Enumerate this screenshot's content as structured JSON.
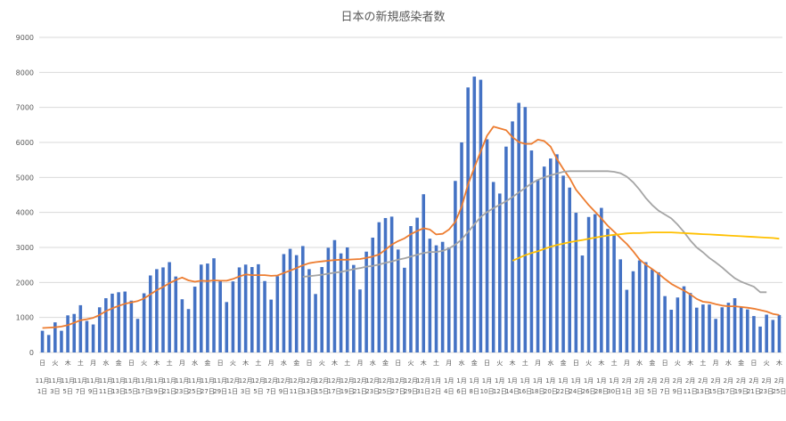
{
  "chart_data": {
    "type": "bar",
    "title": "日本の新規感染者数",
    "ylim": [
      0,
      9000
    ],
    "yticks": [
      0,
      1000,
      2000,
      3000,
      4000,
      5000,
      6000,
      7000,
      8000,
      9000
    ],
    "grid": true,
    "colors": {
      "bars": "#4472C4",
      "line_orange": "#ED7D31",
      "line_gray": "#A5A5A5",
      "line_yellow": "#FFC000",
      "grid": "#D9D9D9"
    },
    "weekday_labels": [
      "日",
      "",
      "火",
      "",
      "木",
      "",
      "土",
      "",
      "月",
      "",
      "水",
      "",
      "金",
      "",
      "日",
      "",
      "火",
      "",
      "木",
      "",
      "土",
      "",
      "月",
      "",
      "水",
      "",
      "金",
      "",
      "日",
      "",
      "火",
      "",
      "木",
      "",
      "土",
      "",
      "月",
      "",
      "水",
      "",
      "金",
      "",
      "日",
      "",
      "火",
      "",
      "木",
      "",
      "土",
      "",
      "月",
      "",
      "水",
      "",
      "金",
      "",
      "日",
      "",
      "火",
      "",
      "木",
      "",
      "土",
      "",
      "月",
      "",
      "水",
      "",
      "金",
      "",
      "日",
      "",
      "火",
      "",
      "木",
      "",
      "土",
      "",
      "月",
      "",
      "水",
      "",
      "金",
      "",
      "日",
      "",
      "火",
      "",
      "木",
      "",
      "土",
      "",
      "月",
      "",
      "水",
      "",
      "金",
      "",
      "日",
      "",
      "火",
      "",
      "木",
      "",
      "土",
      "",
      "月",
      "",
      "水",
      "",
      "金",
      "",
      "日",
      "",
      "火",
      "",
      "木",
      "",
      "土",
      "",
      "月",
      "",
      "水",
      "",
      "金",
      "",
      "日",
      "",
      "火",
      "",
      "木"
    ],
    "month_labels": [
      "11月",
      "",
      "11月",
      "",
      "11月",
      "",
      "11月",
      "",
      "11月",
      "",
      "11月",
      "",
      "11月",
      "",
      "11月",
      "",
      "11月",
      "",
      "11月",
      "",
      "11月",
      "",
      "11月",
      "",
      "11月",
      "",
      "11月",
      "",
      "11月",
      "",
      "12月",
      "",
      "12月",
      "",
      "12月",
      "",
      "12月",
      "",
      "12月",
      "",
      "12月",
      "",
      "12月",
      "",
      "12月",
      "",
      "12月",
      "",
      "12月",
      "",
      "12月",
      "",
      "12月",
      "",
      "12月",
      "",
      "12月",
      "",
      "12月",
      "",
      "12月",
      "",
      "1月",
      "",
      "1月",
      "",
      "1月",
      "",
      "1月",
      "",
      "1月",
      "",
      "1月",
      "",
      "1月",
      "",
      "1月",
      "",
      "1月",
      "",
      "1月",
      "",
      "1月",
      "",
      "1月",
      "",
      "1月",
      "",
      "1月",
      "",
      "1月",
      "",
      "2月",
      "",
      "2月",
      "",
      "2月",
      "",
      "2月",
      "",
      "2月",
      "",
      "2月",
      "",
      "2月",
      "",
      "2月",
      "",
      "2月",
      "",
      "2月",
      "",
      "2月",
      "",
      "2月",
      "",
      "2月"
    ],
    "day_labels": [
      "1日",
      "",
      "3日",
      "",
      "5日",
      "",
      "7日",
      "",
      "9日",
      "",
      "11日",
      "",
      "13日",
      "",
      "15日",
      "",
      "17日",
      "",
      "19日",
      "",
      "21日",
      "",
      "23日",
      "",
      "25日",
      "",
      "27日",
      "",
      "29日",
      "",
      "1日",
      "",
      "3日",
      "",
      "5日",
      "",
      "7日",
      "",
      "9日",
      "",
      "11日",
      "",
      "13日",
      "",
      "15日",
      "",
      "17日",
      "",
      "19日",
      "",
      "21日",
      "",
      "23日",
      "",
      "25日",
      "",
      "27日",
      "",
      "29日",
      "",
      "31日",
      "",
      "2日",
      "",
      "4日",
      "",
      "6日",
      "",
      "8日",
      "",
      "10日",
      "",
      "12日",
      "",
      "14日",
      "",
      "16日",
      "",
      "18日",
      "",
      "20日",
      "",
      "22日",
      "",
      "24日",
      "",
      "26日",
      "",
      "28日",
      "",
      "30日",
      "",
      "1日",
      "",
      "3日",
      "",
      "5日",
      "",
      "7日",
      "",
      "9日",
      "",
      "11日",
      "",
      "13日",
      "",
      "15日",
      "",
      "17日",
      "",
      "19日",
      "",
      "21日",
      "",
      "23日",
      "",
      "25日"
    ],
    "values": [
      620,
      500,
      860,
      620,
      1060,
      1100,
      1350,
      900,
      800,
      1290,
      1550,
      1680,
      1720,
      1740,
      1480,
      960,
      1690,
      2200,
      2380,
      2430,
      2580,
      2170,
      1520,
      1240,
      1880,
      2510,
      2540,
      2690,
      2060,
      1440,
      2030,
      2430,
      2510,
      2440,
      2520,
      2040,
      1510,
      2180,
      2810,
      2960,
      2780,
      3040,
      2380,
      1670,
      2440,
      2990,
      3210,
      2830,
      3000,
      2500,
      1800,
      2880,
      3280,
      3720,
      3840,
      3880,
      2940,
      2420,
      3610,
      3850,
      4520,
      3250,
      3060,
      3160,
      3000,
      4900,
      6000,
      7570,
      7880,
      7790,
      6090,
      4870,
      4540,
      5880,
      6600,
      7130,
      7010,
      5770,
      4940,
      5310,
      5540,
      5660,
      5050,
      4710,
      3990,
      2770,
      3870,
      3950,
      4130,
      3530,
      3340,
      2660,
      1790,
      2320,
      2630,
      2580,
      2370,
      2290,
      1610,
      1220,
      1570,
      1890,
      1700,
      1280,
      1370,
      1370,
      960,
      1290,
      1420,
      1550,
      1290,
      1230,
      1040,
      740,
      1080,
      930,
      1070
    ],
    "series": [
      {
        "values": [
          700,
          710,
          720,
          740,
          780,
          850,
          920,
          950,
          990,
          1070,
          1180,
          1260,
          1330,
          1390,
          1430,
          1470,
          1540,
          1660,
          1780,
          1870,
          1980,
          2070,
          2140,
          2060,
          2020,
          2050,
          2040,
          2060,
          2050,
          2050,
          2100,
          2170,
          2230,
          2210,
          2210,
          2210,
          2190,
          2200,
          2270,
          2340,
          2410,
          2490,
          2550,
          2580,
          2600,
          2620,
          2640,
          2650,
          2650,
          2660,
          2670,
          2700,
          2740,
          2800,
          2940,
          3080,
          3180,
          3260,
          3380,
          3470,
          3550,
          3510,
          3370,
          3390,
          3510,
          3730,
          4160,
          4800,
          5280,
          5740,
          6190,
          6450,
          6400,
          6350,
          6150,
          6010,
          5960,
          5960,
          6080,
          6040,
          5880,
          5530,
          5240,
          4980,
          4650,
          4430,
          4210,
          4020,
          3830,
          3620,
          3450,
          3270,
          3100,
          2890,
          2660,
          2510,
          2380,
          2250,
          2100,
          1960,
          1860,
          1770,
          1660,
          1530,
          1450,
          1430,
          1380,
          1340,
          1320,
          1320,
          1300,
          1280,
          1250,
          1210,
          1170,
          1100,
          1070
        ]
      },
      {
        "values": [
          null,
          null,
          null,
          null,
          null,
          null,
          null,
          null,
          null,
          null,
          null,
          null,
          null,
          null,
          null,
          null,
          null,
          null,
          null,
          null,
          null,
          null,
          null,
          null,
          null,
          null,
          null,
          null,
          null,
          null,
          null,
          null,
          null,
          null,
          null,
          null,
          null,
          null,
          null,
          null,
          null,
          2160,
          2180,
          2200,
          2220,
          2250,
          2280,
          2300,
          2340,
          2380,
          2410,
          2450,
          2470,
          2510,
          2560,
          2600,
          2650,
          2690,
          2740,
          2790,
          2840,
          2870,
          2870,
          2900,
          2970,
          3080,
          3230,
          3440,
          3660,
          3870,
          4010,
          4120,
          4220,
          4320,
          4440,
          4570,
          4700,
          4830,
          4930,
          5000,
          5060,
          5110,
          5160,
          5180,
          5180,
          5180,
          5180,
          5180,
          5180,
          5180,
          5160,
          5120,
          5020,
          4860,
          4650,
          4410,
          4210,
          4050,
          3940,
          3830,
          3650,
          3440,
          3200,
          3000,
          2860,
          2700,
          2570,
          2430,
          2270,
          2120,
          2020,
          1950,
          1880,
          1720,
          1720
        ]
      },
      {
        "values": [
          null,
          null,
          null,
          null,
          null,
          null,
          null,
          null,
          null,
          null,
          null,
          null,
          null,
          null,
          null,
          null,
          null,
          null,
          null,
          null,
          null,
          null,
          null,
          null,
          null,
          null,
          null,
          null,
          null,
          null,
          null,
          null,
          null,
          null,
          null,
          null,
          null,
          null,
          null,
          null,
          null,
          null,
          null,
          null,
          null,
          null,
          null,
          null,
          null,
          null,
          null,
          null,
          null,
          null,
          null,
          null,
          null,
          null,
          null,
          null,
          null,
          null,
          null,
          null,
          null,
          null,
          null,
          null,
          null,
          null,
          null,
          null,
          null,
          null,
          2620,
          2700,
          2780,
          2840,
          2890,
          2960,
          3020,
          3070,
          3110,
          3150,
          3180,
          3210,
          3250,
          3280,
          3310,
          3340,
          3360,
          3380,
          3400,
          3410,
          3410,
          3420,
          3430,
          3430,
          3430,
          3430,
          3420,
          3410,
          3400,
          3390,
          3380,
          3370,
          3360,
          3350,
          3340,
          3330,
          3320,
          3310,
          3300,
          3290,
          3280,
          3270,
          3250
        ]
      }
    ]
  }
}
